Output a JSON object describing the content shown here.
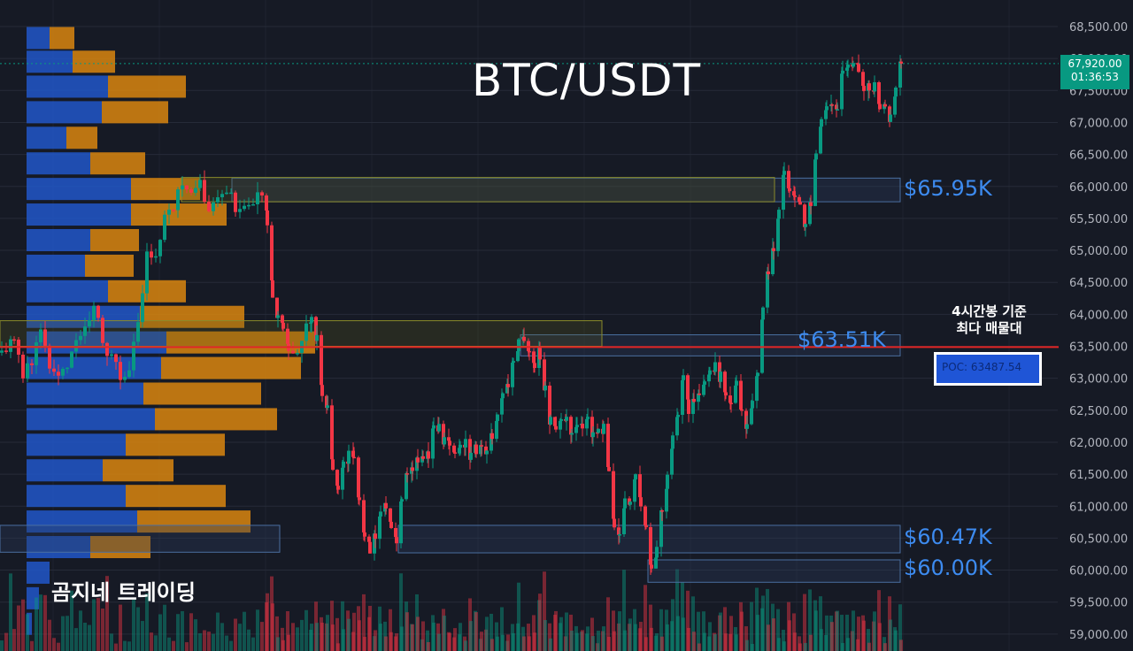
{
  "chart_data": {
    "type": "candlestick",
    "title": "BTC/USDT",
    "watermark": "곰지네 트레이딩",
    "ylim": [
      58800,
      68700
    ],
    "ticks": [
      "68,500.00",
      "68,000.00",
      "67,500.00",
      "67,000.00",
      "66,500.00",
      "66,000.00",
      "65,500.00",
      "65,000.00",
      "64,500.00",
      "64,000.00",
      "63,500.00",
      "63,000.00",
      "62,500.00",
      "62,000.00",
      "61,500.00",
      "61,000.00",
      "60,500.00",
      "60,000.00",
      "59,500.00",
      "59,000.00"
    ],
    "tick_values": [
      68500,
      68000,
      67500,
      67000,
      66500,
      66000,
      65500,
      65000,
      64500,
      64000,
      63500,
      63000,
      62500,
      62000,
      61500,
      61000,
      60500,
      60000,
      59500,
      59000
    ],
    "current_price": {
      "value": 67920,
      "price_label": "67,920.00",
      "countdown": "01:36:53"
    },
    "poc": {
      "value": 63487.54,
      "label": "POC: 63487.54",
      "annotation_line1": "4시간봉 기준",
      "annotation_line2": "최다 매물대"
    },
    "zones": [
      {
        "name": "zone-65950",
        "label": "$65.95K",
        "low": 65760,
        "high": 66130
      },
      {
        "name": "zone-63510",
        "label": "$63.51K",
        "low": 63350,
        "high": 63680
      },
      {
        "name": "zone-60470",
        "label": "$60.47K",
        "low": 60270,
        "high": 60700
      },
      {
        "name": "zone-60000",
        "label": "$60.00K",
        "low": 59810,
        "high": 60160
      }
    ],
    "volume_profile": [
      {
        "price": 68320,
        "buy": 26,
        "sell": 28
      },
      {
        "price": 67950,
        "buy": 52,
        "sell": 48
      },
      {
        "price": 67560,
        "buy": 92,
        "sell": 88
      },
      {
        "price": 67160,
        "buy": 85,
        "sell": 75
      },
      {
        "price": 66760,
        "buy": 45,
        "sell": 35
      },
      {
        "price": 66360,
        "buy": 72,
        "sell": 62
      },
      {
        "price": 65960,
        "buy": 118,
        "sell": 78
      },
      {
        "price": 65560,
        "buy": 118,
        "sell": 108
      },
      {
        "price": 65160,
        "buy": 72,
        "sell": 55
      },
      {
        "price": 64760,
        "buy": 66,
        "sell": 55
      },
      {
        "price": 64360,
        "buy": 92,
        "sell": 88
      },
      {
        "price": 63960,
        "buy": 128,
        "sell": 118
      },
      {
        "price": 63560,
        "buy": 158,
        "sell": 168
      },
      {
        "price": 63160,
        "buy": 152,
        "sell": 158
      },
      {
        "price": 62760,
        "buy": 132,
        "sell": 133
      },
      {
        "price": 62360,
        "buy": 145,
        "sell": 138
      },
      {
        "price": 61960,
        "buy": 112,
        "sell": 112
      },
      {
        "price": 61560,
        "buy": 86,
        "sell": 80
      },
      {
        "price": 61160,
        "buy": 112,
        "sell": 113
      },
      {
        "price": 60760,
        "buy": 125,
        "sell": 128
      },
      {
        "price": 60360,
        "buy": 72,
        "sell": 68
      },
      {
        "price": 59960,
        "buy": 26,
        "sell": 0
      },
      {
        "price": 59560,
        "buy": 14,
        "sell": 0
      },
      {
        "price": 59160,
        "buy": 6,
        "sell": 0
      }
    ],
    "candle_anchors": [
      [
        0,
        63400
      ],
      [
        14,
        63600
      ],
      [
        24,
        63100
      ],
      [
        34,
        63300
      ],
      [
        44,
        63700
      ],
      [
        54,
        63200
      ],
      [
        64,
        63000
      ],
      [
        74,
        63200
      ],
      [
        84,
        63600
      ],
      [
        94,
        63900
      ],
      [
        104,
        64100
      ],
      [
        114,
        63600
      ],
      [
        124,
        63300
      ],
      [
        134,
        63000
      ],
      [
        144,
        63200
      ],
      [
        154,
        63900
      ],
      [
        164,
        64900
      ],
      [
        174,
        65000
      ],
      [
        184,
        65500
      ],
      [
        194,
        65700
      ],
      [
        204,
        66000
      ],
      [
        214,
        65800
      ],
      [
        224,
        66000
      ],
      [
        234,
        65700
      ],
      [
        244,
        65800
      ],
      [
        254,
        65900
      ],
      [
        264,
        65700
      ],
      [
        274,
        65600
      ],
      [
        284,
        65700
      ],
      [
        294,
        65900
      ],
      [
        300,
        65500
      ],
      [
        306,
        64300
      ],
      [
        312,
        64000
      ],
      [
        318,
        63800
      ],
      [
        324,
        63400
      ],
      [
        334,
        63300
      ],
      [
        344,
        63800
      ],
      [
        350,
        64000
      ],
      [
        356,
        63600
      ],
      [
        362,
        62700
      ],
      [
        368,
        62500
      ],
      [
        374,
        61500
      ],
      [
        380,
        61200
      ],
      [
        386,
        61600
      ],
      [
        392,
        61800
      ],
      [
        398,
        61700
      ],
      [
        404,
        61100
      ],
      [
        410,
        60600
      ],
      [
        416,
        60300
      ],
      [
        422,
        60500
      ],
      [
        428,
        60900
      ],
      [
        434,
        61000
      ],
      [
        440,
        60700
      ],
      [
        446,
        60500
      ],
      [
        452,
        61200
      ],
      [
        458,
        61500
      ],
      [
        464,
        61600
      ],
      [
        470,
        61700
      ],
      [
        476,
        61800
      ],
      [
        482,
        61800
      ],
      [
        488,
        62300
      ],
      [
        494,
        62200
      ],
      [
        500,
        62000
      ],
      [
        506,
        61900
      ],
      [
        512,
        61800
      ],
      [
        518,
        61900
      ],
      [
        524,
        62000
      ],
      [
        530,
        61800
      ],
      [
        536,
        61900
      ],
      [
        542,
        61900
      ],
      [
        548,
        61900
      ],
      [
        554,
        62100
      ],
      [
        560,
        62500
      ],
      [
        566,
        62800
      ],
      [
        572,
        62900
      ],
      [
        578,
        63300
      ],
      [
        584,
        63500
      ],
      [
        590,
        63600
      ],
      [
        596,
        63500
      ],
      [
        602,
        63200
      ],
      [
        608,
        63400
      ],
      [
        614,
        62800
      ],
      [
        620,
        62300
      ],
      [
        626,
        62200
      ],
      [
        632,
        62400
      ],
      [
        638,
        62300
      ],
      [
        644,
        62200
      ],
      [
        650,
        62300
      ],
      [
        656,
        62200
      ],
      [
        662,
        62300
      ],
      [
        668,
        62100
      ],
      [
        674,
        62200
      ],
      [
        680,
        62200
      ],
      [
        686,
        61600
      ],
      [
        692,
        60700
      ],
      [
        698,
        60600
      ],
      [
        704,
        61100
      ],
      [
        710,
        61100
      ],
      [
        716,
        61400
      ],
      [
        722,
        61100
      ],
      [
        728,
        60600
      ],
      [
        734,
        60000
      ],
      [
        740,
        60300
      ],
      [
        746,
        61000
      ],
      [
        752,
        61400
      ],
      [
        758,
        62100
      ],
      [
        764,
        62500
      ],
      [
        770,
        63000
      ],
      [
        776,
        62500
      ],
      [
        782,
        62700
      ],
      [
        788,
        62800
      ],
      [
        794,
        63000
      ],
      [
        800,
        63100
      ],
      [
        806,
        63200
      ],
      [
        812,
        63000
      ],
      [
        818,
        62800
      ],
      [
        824,
        62600
      ],
      [
        830,
        62900
      ],
      [
        836,
        62500
      ],
      [
        842,
        62200
      ],
      [
        848,
        62700
      ],
      [
        854,
        63000
      ],
      [
        860,
        64000
      ],
      [
        866,
        64700
      ],
      [
        872,
        65000
      ],
      [
        878,
        65700
      ],
      [
        884,
        66200
      ],
      [
        890,
        66000
      ],
      [
        896,
        65800
      ],
      [
        902,
        65800
      ],
      [
        908,
        65400
      ],
      [
        914,
        65700
      ],
      [
        920,
        66600
      ],
      [
        926,
        67000
      ],
      [
        932,
        67200
      ],
      [
        938,
        67200
      ],
      [
        944,
        67300
      ],
      [
        950,
        67800
      ],
      [
        956,
        68000
      ],
      [
        962,
        67900
      ],
      [
        968,
        67800
      ],
      [
        974,
        67600
      ],
      [
        980,
        67500
      ],
      [
        986,
        67600
      ],
      [
        992,
        67200
      ],
      [
        998,
        67200
      ],
      [
        1004,
        67100
      ],
      [
        1010,
        67500
      ],
      [
        1016,
        67920
      ]
    ]
  },
  "colors": {
    "background": "#161a25",
    "grid": "#262b38",
    "up": "#089981",
    "down": "#f23645",
    "buy_volume": "#2157c9",
    "sell_volume": "#d9860f",
    "poc_line": "#e32424",
    "zone_label": "#3d8bf0",
    "axis_text": "#b2b5be"
  }
}
